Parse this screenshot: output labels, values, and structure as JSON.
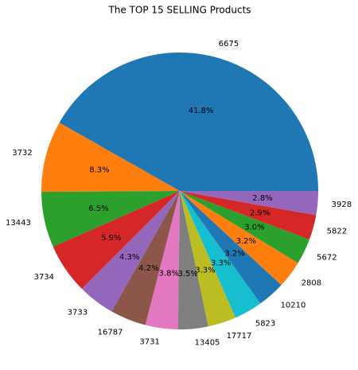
{
  "chart_data": {
    "type": "pie",
    "title": "The TOP 15 SELLING Products",
    "categories": [
      "6675",
      "3732",
      "13443",
      "3734",
      "3733",
      "16787",
      "3731",
      "13405",
      "17717",
      "5823",
      "10210",
      "2808",
      "5672",
      "5822",
      "3928"
    ],
    "values": [
      41.8,
      8.3,
      6.5,
      5.9,
      4.3,
      4.2,
      3.8,
      3.5,
      3.3,
      3.3,
      3.2,
      3.2,
      3.0,
      2.9,
      2.8
    ],
    "value_labels": [
      "41.8%",
      "8.3%",
      "6.5%",
      "5.9%",
      "4.3%",
      "4.2%",
      "3.8%",
      "3.5%",
      "3.3%",
      "3.3%",
      "3.2%",
      "3.2%",
      "3.0%",
      "2.9%",
      "2.8%"
    ],
    "colors": [
      "#1f77b4",
      "#ff7f0e",
      "#2ca02c",
      "#d62728",
      "#9467bd",
      "#8c564b",
      "#e377c2",
      "#7f7f7f",
      "#bcbd22",
      "#17becf",
      "#1f77b4",
      "#ff7f0e",
      "#2ca02c",
      "#d62728",
      "#9467bd"
    ]
  }
}
